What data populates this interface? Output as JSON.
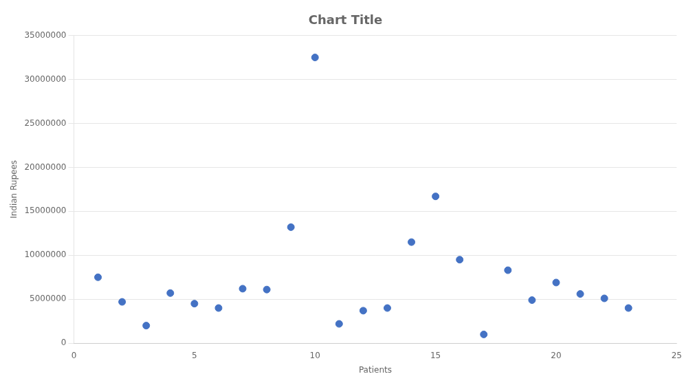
{
  "chart_data": {
    "type": "scatter",
    "title": "Chart Title",
    "xlabel": "Patients",
    "ylabel": "Indian Rupees",
    "x": [
      1,
      2,
      3,
      4,
      5,
      6,
      7,
      8,
      9,
      10,
      11,
      12,
      13,
      14,
      15,
      16,
      17,
      18,
      19,
      20,
      21,
      22,
      23
    ],
    "values": [
      7500000,
      4700000,
      2000000,
      5700000,
      4500000,
      4000000,
      6200000,
      6100000,
      13200000,
      32500000,
      2200000,
      3700000,
      4000000,
      11500000,
      16700000,
      9500000,
      1000000,
      8300000,
      4900000,
      6900000,
      5600000,
      5100000,
      4000000
    ],
    "color": "#4472C4",
    "xlim": [
      0,
      25
    ],
    "ylim": [
      0,
      35000000
    ],
    "xticks": [
      0,
      5,
      10,
      15,
      20,
      25
    ],
    "yticks": [
      0,
      5000000,
      10000000,
      15000000,
      20000000,
      25000000,
      30000000,
      35000000
    ],
    "grid": "y"
  }
}
